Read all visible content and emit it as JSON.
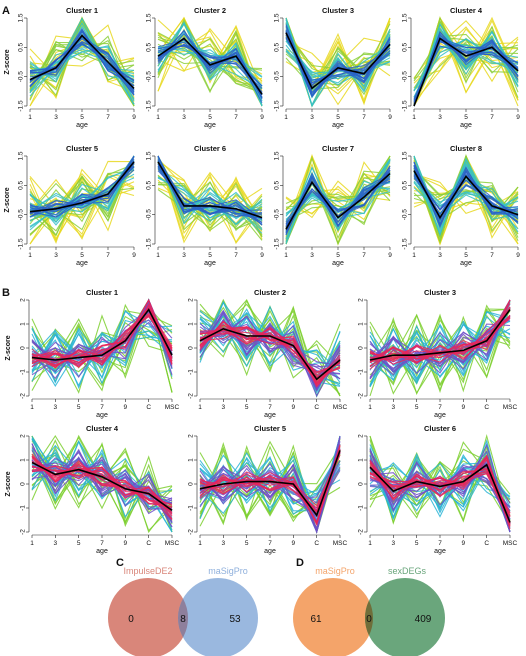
{
  "panels": {
    "A": "A",
    "B": "B",
    "C": "C",
    "D": "D"
  },
  "chart_data": [
    {
      "panel": "A",
      "type": "line",
      "ylabel": "Z-score",
      "xlabel": "age",
      "x": [
        1,
        3,
        5,
        7,
        9
      ],
      "xticks": [
        "1",
        "3",
        "5",
        "7",
        "9"
      ],
      "yticks": [
        "1.5",
        "0.5",
        "-0.5",
        "-1.5"
      ],
      "ylim": [
        -1.5,
        1.5
      ],
      "colors": [
        "#e8d820",
        "#8ccf3a",
        "#35c0c8",
        "#2a62c8"
      ],
      "clusters": [
        {
          "title": "Cluster 1",
          "centroid": [
            -0.6,
            -0.2,
            0.9,
            0.0,
            -0.9
          ]
        },
        {
          "title": "Cluster 2",
          "centroid": [
            0.2,
            0.8,
            -0.1,
            0.2,
            -1.1
          ]
        },
        {
          "title": "Cluster 3",
          "centroid": [
            1.0,
            -0.9,
            -0.2,
            -0.4,
            0.6
          ]
        },
        {
          "title": "Cluster 4",
          "centroid": [
            -1.5,
            0.8,
            0.2,
            0.5,
            -0.3
          ]
        },
        {
          "title": "Cluster 5",
          "centroid": [
            -0.4,
            -0.3,
            -0.1,
            0.2,
            1.3
          ]
        },
        {
          "title": "Cluster 6",
          "centroid": [
            1.3,
            -0.2,
            -0.2,
            -0.3,
            -0.6
          ]
        },
        {
          "title": "Cluster 7",
          "centroid": [
            -1.0,
            0.6,
            -0.6,
            0.1,
            0.9
          ]
        },
        {
          "title": "Cluster 8",
          "centroid": [
            1.0,
            -0.6,
            0.8,
            -0.2,
            -0.5
          ]
        }
      ]
    },
    {
      "panel": "B",
      "type": "line",
      "ylabel": "Z-score",
      "xlabel": "age",
      "x": [
        "1",
        "3",
        "5",
        "7",
        "9",
        "C",
        "MSC"
      ],
      "xticks": [
        "1",
        "3",
        "5",
        "7",
        "9",
        "C",
        "MSC"
      ],
      "yticks": [
        "2",
        "1",
        "0",
        "-1",
        "-2"
      ],
      "ylim": [
        -2,
        2
      ],
      "colors": [
        "#7ccf2f",
        "#28b4d6",
        "#6e4fc8",
        "#e8265a"
      ],
      "clusters": [
        {
          "title": "Cluster 1",
          "centroid": [
            -0.4,
            -0.5,
            -0.4,
            -0.3,
            0.3,
            1.6,
            -0.3
          ]
        },
        {
          "title": "Cluster 2",
          "centroid": [
            0.3,
            0.8,
            0.5,
            0.5,
            0.1,
            -1.3,
            -0.5
          ]
        },
        {
          "title": "Cluster 3",
          "centroid": [
            -0.5,
            -0.3,
            -0.3,
            -0.2,
            -0.1,
            0.3,
            1.6
          ]
        },
        {
          "title": "Cluster 4",
          "centroid": [
            0.9,
            0.4,
            0.6,
            0.3,
            -0.2,
            -0.4,
            -1.1
          ]
        },
        {
          "title": "Cluster 5",
          "centroid": [
            -0.2,
            0.0,
            0.1,
            0.1,
            0.0,
            -1.3,
            1.4
          ]
        },
        {
          "title": "Cluster 6",
          "centroid": [
            0.7,
            -0.3,
            0.1,
            -0.1,
            0.1,
            0.8,
            -1.6
          ]
        }
      ]
    }
  ],
  "venn_c": {
    "left_label": "ImpulseDE2",
    "right_label": "maSigPro",
    "left_only": "0",
    "overlap": "8",
    "right_only": "53",
    "left_color": "#d9867a",
    "right_color": "#8fb0dc",
    "overlap_color": "#8e7f9c"
  },
  "venn_d": {
    "left_label": "maSigPro",
    "right_label": "sexDEGs",
    "left_only": "61",
    "overlap": "0",
    "right_only": "409",
    "left_color": "#f4a46a",
    "right_color": "#6aa67c",
    "overlap_color": "#6f6e3a"
  }
}
